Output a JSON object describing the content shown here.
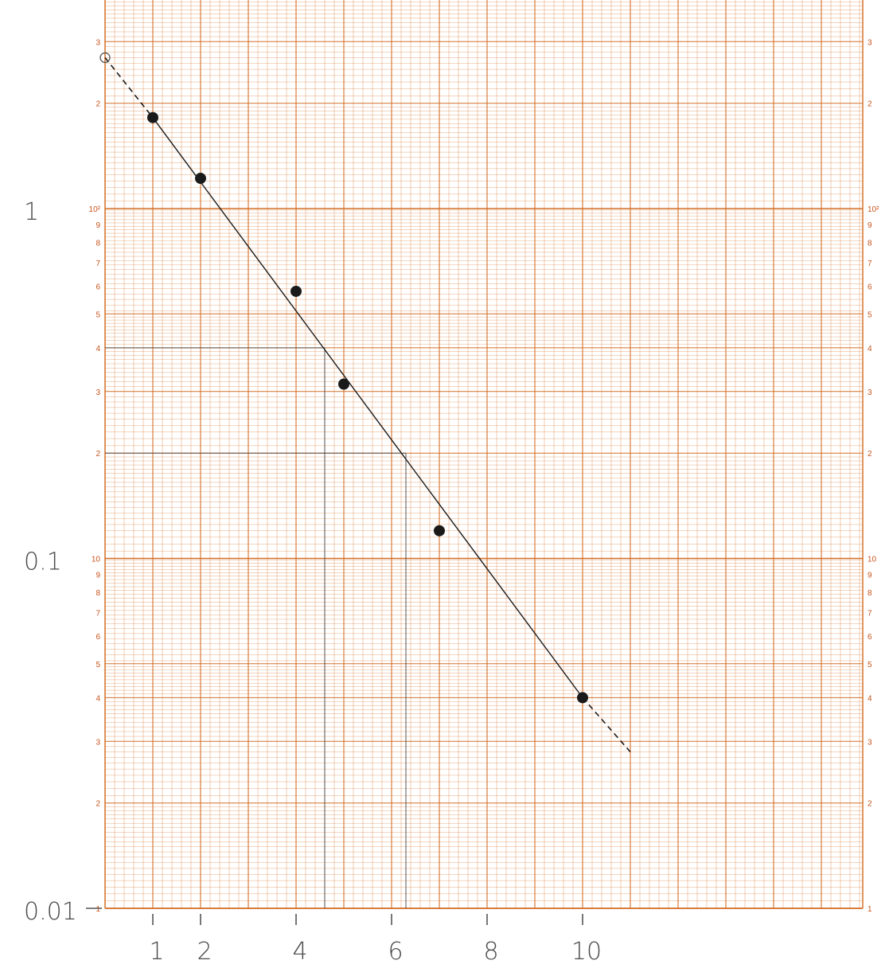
{
  "chart_data": {
    "type": "scatter",
    "title": "",
    "xlabel": "",
    "ylabel": "",
    "y_scale": "log",
    "xlim": [
      0,
      16
    ],
    "ylim": [
      0.01,
      3.5
    ],
    "grid": true,
    "x_ticks": [
      0,
      1,
      2,
      3,
      4,
      5,
      6,
      7,
      8,
      9,
      10,
      11,
      12,
      13,
      14,
      15,
      16
    ],
    "x_tick_labels_handwritten": [
      "1",
      "2",
      "4",
      "6",
      "8",
      "10"
    ],
    "x_tick_label_values": [
      1,
      2,
      4,
      6,
      8,
      10
    ],
    "y_tick_labels_handwritten": [
      "1",
      "0.1",
      "0.01"
    ],
    "y_tick_label_values": [
      1,
      0.1,
      0.01
    ],
    "paper_labels_left": [
      "3",
      "2",
      "10²",
      "9",
      "8",
      "7",
      "6",
      "5",
      "4",
      "3",
      "2",
      "10",
      "9",
      "8",
      "7",
      "6",
      "5",
      "4",
      "3",
      "2",
      "1"
    ],
    "paper_labels_right": [
      "3",
      "2",
      "10²",
      "9",
      "8",
      "7",
      "6",
      "5",
      "4",
      "3",
      "2",
      "10",
      "9",
      "8",
      "7",
      "6",
      "5",
      "4",
      "3",
      "2",
      "1"
    ],
    "paper_label_values": [
      3,
      2,
      1,
      0.9,
      0.8,
      0.7,
      0.6,
      0.5,
      0.4,
      0.3,
      0.2,
      0.1,
      0.09,
      0.08,
      0.07,
      0.06,
      0.05,
      0.04,
      0.03,
      0.02,
      0.01
    ],
    "series": [
      {
        "style": "filled-dots",
        "points": [
          {
            "x": 1,
            "y": 1.82
          },
          {
            "x": 2,
            "y": 1.22
          },
          {
            "x": 4,
            "y": 0.58
          },
          {
            "x": 5,
            "y": 0.315
          },
          {
            "x": 7,
            "y": 0.12
          },
          {
            "x": 10,
            "y": 0.04
          }
        ]
      }
    ],
    "intercept_marker": {
      "x": 0,
      "y": 2.7,
      "style": "open-circle"
    },
    "fit_line": {
      "solid": {
        "x": [
          1,
          10
        ],
        "y": [
          1.82,
          0.04
        ]
      },
      "dashed_start": {
        "x": [
          0,
          1
        ],
        "y": [
          2.7,
          1.82
        ]
      },
      "dashed_end": {
        "x": [
          10,
          11
        ],
        "y": [
          0.04,
          0.028
        ]
      }
    },
    "guide_lines": [
      {
        "y": 0.4,
        "x_at_line": 4.6
      },
      {
        "y": 0.2,
        "x_at_line": 6.3
      }
    ],
    "colors": {
      "grid": "#d2691e",
      "ink": "#1a1a1a",
      "guide": "#444444",
      "paper": "#ffffff"
    }
  }
}
